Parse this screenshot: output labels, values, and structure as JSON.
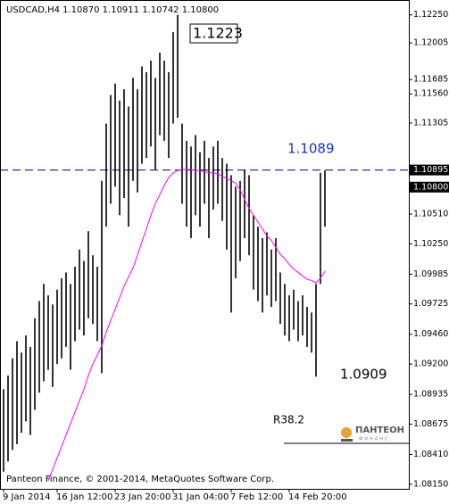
{
  "chart_data": {
    "type": "ohlc",
    "title": "USDCAD,H4  1.10870 1.10911 1.10742 1.10800",
    "copyright": "Panteon Finance, © 2001-2014, MetaQuotes Software Corp.",
    "logo": {
      "name": "ПАНТЕОН",
      "sub": "ФИНАНС"
    },
    "color": "#000000",
    "ma_color": "#ff00ff",
    "ylim": [
      1.0811,
      1.1238
    ],
    "yticks": [
      {
        "value": 1.1225,
        "label": "1.12250"
      },
      {
        "value": 1.12005,
        "label": "1.12005"
      },
      {
        "value": 1.11685,
        "label": "1.11685"
      },
      {
        "value": 1.1156,
        "label": "1.11560"
      },
      {
        "value": 1.11305,
        "label": "1.11305"
      },
      {
        "value": 1.1051,
        "label": "1.10510"
      },
      {
        "value": 1.1025,
        "label": "1.10250"
      },
      {
        "value": 1.09985,
        "label": "1.09985"
      },
      {
        "value": 1.09725,
        "label": "1.09725"
      },
      {
        "value": 1.0946,
        "label": "1.09460"
      },
      {
        "value": 1.092,
        "label": "1.09200"
      },
      {
        "value": 1.08935,
        "label": "1.08935"
      },
      {
        "value": 1.08675,
        "label": "1.08675"
      },
      {
        "value": 1.0841,
        "label": "1.08410"
      },
      {
        "value": 1.0815,
        "label": "1.08150"
      }
    ],
    "price_level": 1.10895,
    "price_level_color": "#000080",
    "current_price": {
      "value": 1.108,
      "label": "1.10800"
    },
    "annotations": [
      "1.1223",
      "1.1089",
      "1.0909",
      "R38.2"
    ],
    "categories": [
      "9 Jan 2014",
      null,
      null,
      null,
      null,
      null,
      null,
      null,
      null,
      null,
      null,
      null,
      "16 Jan 12:00",
      null,
      null,
      null,
      null,
      null,
      null,
      null,
      null,
      null,
      null,
      null,
      null,
      "23 Jan 20:00",
      null,
      null,
      null,
      null,
      null,
      null,
      null,
      null,
      null,
      null,
      null,
      null,
      "31 Jan 04:00",
      null,
      null,
      null,
      null,
      null,
      null,
      null,
      null,
      null,
      null,
      null,
      null,
      "7 Feb 12:00",
      null,
      null,
      null,
      null,
      null,
      null,
      null,
      null,
      null,
      null,
      null,
      null,
      "14 Feb 20:00",
      null,
      null,
      null,
      null,
      null,
      null,
      null,
      null
    ],
    "high": [
      1.0898,
      1.091,
      1.0925,
      1.094,
      1.093,
      1.0945,
      1.0935,
      1.096,
      1.0975,
      1.099,
      1.098,
      1.0972,
      1.0985,
      1.0995,
      1.1,
      1.099,
      1.1005,
      1.102,
      1.101,
      1.1036,
      1.1015,
      1.1005,
      1.108,
      1.113,
      1.1155,
      1.1165,
      1.115,
      1.116,
      1.1145,
      1.117,
      1.116,
      1.118,
      1.1175,
      1.1185,
      1.117,
      1.1192,
      1.1185,
      1.1175,
      1.121,
      1.1225,
      1.113,
      1.1115,
      1.111,
      1.112,
      1.1105,
      1.1115,
      1.11,
      1.111,
      1.1115,
      1.11,
      1.1095,
      1.1085,
      1.1075,
      1.108,
      1.109,
      1.1085,
      1.105,
      1.104,
      1.103,
      1.1035,
      1.102,
      1.103,
      1.1,
      1.099,
      1.098,
      1.0985,
      1.0975,
      1.098,
      1.097,
      1.0965,
      1.099,
      1.1087,
      1.1089
    ],
    "low": [
      1.0826,
      1.0835,
      1.0845,
      1.085,
      1.086,
      1.087,
      1.0858,
      1.088,
      1.0895,
      1.0905,
      1.0915,
      1.09,
      1.092,
      1.0925,
      1.0935,
      1.0915,
      1.094,
      1.095,
      1.0945,
      1.096,
      1.0955,
      1.094,
      1.0912,
      1.104,
      1.106,
      1.1075,
      1.105,
      1.1065,
      1.104,
      1.108,
      1.107,
      1.1095,
      1.11,
      1.111,
      1.109,
      1.112,
      1.1115,
      1.11,
      1.113,
      1.1135,
      1.106,
      1.104,
      1.103,
      1.105,
      1.104,
      1.106,
      1.103,
      1.1055,
      1.106,
      1.1045,
      1.102,
      1.0965,
      1.0995,
      1.101,
      1.103,
      1.1015,
      1.0985,
      1.0975,
      1.0965,
      1.098,
      1.097,
      1.0975,
      1.0955,
      1.0945,
      1.094,
      1.095,
      1.094,
      1.0945,
      1.0935,
      1.093,
      1.0909,
      1.099,
      1.104
    ],
    "ma_values": [
      null,
      null,
      null,
      null,
      null,
      null,
      null,
      null,
      null,
      null,
      1.0818,
      1.0828,
      1.0838,
      1.0848,
      1.0858,
      1.0868,
      1.0878,
      1.0888,
      1.0898,
      1.091,
      1.092,
      1.0928,
      1.0936,
      1.0948,
      1.0958,
      1.0968,
      1.0978,
      1.0988,
      1.0996,
      1.1004,
      1.1015,
      1.1027,
      1.1038,
      1.105,
      1.106,
      1.1068,
      1.1076,
      1.1083,
      1.1087,
      1.1089,
      1.109,
      1.109,
      1.109,
      1.1089,
      1.1089,
      1.1088,
      1.1087,
      1.1087,
      1.1086,
      1.1084,
      1.1082,
      1.108,
      1.1078,
      1.1072,
      1.1064,
      1.1056,
      1.105,
      1.1044,
      1.1038,
      1.1032,
      1.1028,
      1.1022,
      1.1016,
      1.1012,
      1.1007,
      1.1003,
      1.1,
      1.0997,
      1.0994,
      1.0993,
      1.0991,
      1.0995,
      1.1001
    ]
  }
}
